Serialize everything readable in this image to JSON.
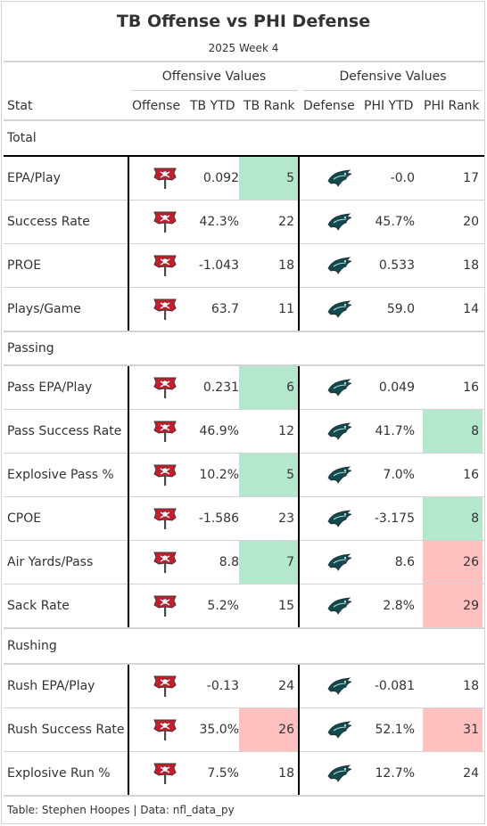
{
  "title": "TB Offense vs PHI Defense",
  "subtitle": "2025 Week 4",
  "spanners": {
    "offense": "Offensive Values",
    "defense": "Defensive Values"
  },
  "columns": {
    "stat": "Stat",
    "offense": "Offense",
    "tb_ytd": "TB YTD",
    "tb_rank": "TB Rank",
    "defense": "Defense",
    "phi_ytd": "PHI YTD",
    "phi_rank": "PHI Rank"
  },
  "colors": {
    "good": "#b3e8cc",
    "bad": "#ffc0c0",
    "tb_red": "#c81c2b",
    "phi_green": "#0e4b51"
  },
  "icons": {
    "offense": "buccaneers-flag-logo-icon",
    "defense": "eagles-head-logo-icon"
  },
  "groups": [
    {
      "label": "Total",
      "rows": [
        {
          "stat": "EPA/Play",
          "tb_ytd": "0.092",
          "tb_rank": "5",
          "tb_hl": "good",
          "phi_ytd": "-0.0",
          "phi_rank": "17",
          "phi_hl": ""
        },
        {
          "stat": "Success Rate",
          "tb_ytd": "42.3%",
          "tb_rank": "22",
          "tb_hl": "",
          "phi_ytd": "45.7%",
          "phi_rank": "20",
          "phi_hl": ""
        },
        {
          "stat": "PROE",
          "tb_ytd": "-1.043",
          "tb_rank": "18",
          "tb_hl": "",
          "phi_ytd": "0.533",
          "phi_rank": "18",
          "phi_hl": ""
        },
        {
          "stat": "Plays/Game",
          "tb_ytd": "63.7",
          "tb_rank": "11",
          "tb_hl": "",
          "phi_ytd": "59.0",
          "phi_rank": "14",
          "phi_hl": ""
        }
      ]
    },
    {
      "label": "Passing",
      "rows": [
        {
          "stat": "Pass EPA/Play",
          "tb_ytd": "0.231",
          "tb_rank": "6",
          "tb_hl": "good",
          "phi_ytd": "0.049",
          "phi_rank": "16",
          "phi_hl": ""
        },
        {
          "stat": "Pass Success Rate",
          "tb_ytd": "46.9%",
          "tb_rank": "12",
          "tb_hl": "",
          "phi_ytd": "41.7%",
          "phi_rank": "8",
          "phi_hl": "good"
        },
        {
          "stat": "Explosive Pass %",
          "tb_ytd": "10.2%",
          "tb_rank": "5",
          "tb_hl": "good",
          "phi_ytd": "7.0%",
          "phi_rank": "16",
          "phi_hl": ""
        },
        {
          "stat": "CPOE",
          "tb_ytd": "-1.586",
          "tb_rank": "23",
          "tb_hl": "",
          "phi_ytd": "-3.175",
          "phi_rank": "8",
          "phi_hl": "good"
        },
        {
          "stat": "Air Yards/Pass",
          "tb_ytd": "8.8",
          "tb_rank": "7",
          "tb_hl": "good",
          "phi_ytd": "8.6",
          "phi_rank": "26",
          "phi_hl": "bad"
        },
        {
          "stat": "Sack Rate",
          "tb_ytd": "5.2%",
          "tb_rank": "15",
          "tb_hl": "",
          "phi_ytd": "2.8%",
          "phi_rank": "29",
          "phi_hl": "bad"
        }
      ]
    },
    {
      "label": "Rushing",
      "rows": [
        {
          "stat": "Rush EPA/Play",
          "tb_ytd": "-0.13",
          "tb_rank": "24",
          "tb_hl": "",
          "phi_ytd": "-0.081",
          "phi_rank": "18",
          "phi_hl": ""
        },
        {
          "stat": "Rush Success Rate",
          "tb_ytd": "35.0%",
          "tb_rank": "26",
          "tb_hl": "bad",
          "phi_ytd": "52.1%",
          "phi_rank": "31",
          "phi_hl": "bad"
        },
        {
          "stat": "Explosive Run %",
          "tb_ytd": "7.5%",
          "tb_rank": "18",
          "tb_hl": "",
          "phi_ytd": "12.7%",
          "phi_rank": "24",
          "phi_hl": ""
        }
      ]
    }
  ],
  "footer": "Table: Stephen Hoopes | Data: nfl_data_py"
}
